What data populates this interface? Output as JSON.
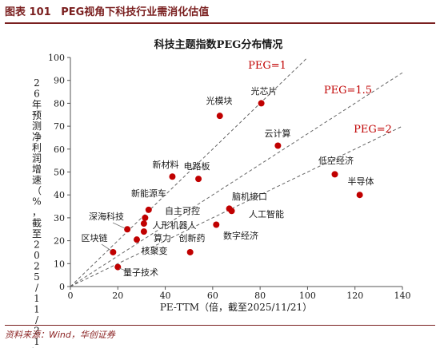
{
  "figure": {
    "label": "图表 101",
    "caption": "PEG视角下科技行业需消化估值",
    "source": "资料来源：Wind，华创证券"
  },
  "chart_data": {
    "type": "scatter",
    "title": "科技主题指数PEG分布情况",
    "xlabel": "PE-TTM（倍，截至2025/11/21）",
    "ylabel": "26年预测净利润增速（%，截至2025/11/21）",
    "xlim": [
      0,
      140
    ],
    "ylim": [
      0,
      100
    ],
    "xticks": [
      "0",
      "20",
      "40",
      "60",
      "80",
      "100",
      "120",
      "140"
    ],
    "yticks": [
      "0",
      "10",
      "20",
      "30",
      "40",
      "50",
      "60",
      "70",
      "80",
      "90",
      "100"
    ],
    "grid": false,
    "point_color": "#c00000",
    "reference_lines": [
      {
        "label": "PEG=1",
        "slope": 1
      },
      {
        "label": "PEG=1.5",
        "slope": 0.6667
      },
      {
        "label": "PEG=2",
        "slope": 0.5
      }
    ],
    "points": [
      {
        "label": "光芯片",
        "x": 80.5,
        "y": 80
      },
      {
        "label": "光模块",
        "x": 63,
        "y": 74.5
      },
      {
        "label": "云计算",
        "x": 87.5,
        "y": 61.5
      },
      {
        "label": "低空经济",
        "x": 111.5,
        "y": 49
      },
      {
        "label": "半导体",
        "x": 122,
        "y": 40
      },
      {
        "label": "新材料",
        "x": 43,
        "y": 48
      },
      {
        "label": "电路板",
        "x": 54,
        "y": 47
      },
      {
        "label": "新能源车",
        "x": 33,
        "y": 33.5
      },
      {
        "label": "自主可控",
        "x": 31.5,
        "y": 30
      },
      {
        "label": "深海科技",
        "x": 24,
        "y": 25
      },
      {
        "label": "人形机器人",
        "x": 31,
        "y": 27.5
      },
      {
        "label": "算力",
        "x": 31,
        "y": 24
      },
      {
        "label": "区块链",
        "x": 18,
        "y": 15
      },
      {
        "label": "核聚变",
        "x": 28,
        "y": 20.5
      },
      {
        "label": "创新药",
        "x": 50.5,
        "y": 15
      },
      {
        "label": "量子技术",
        "x": 20,
        "y": 8.5
      },
      {
        "label": "脑机接口",
        "x": 67,
        "y": 34
      },
      {
        "label": "人工智能",
        "x": 68,
        "y": 33
      },
      {
        "label": "数字经济",
        "x": 61.5,
        "y": 27
      }
    ]
  }
}
